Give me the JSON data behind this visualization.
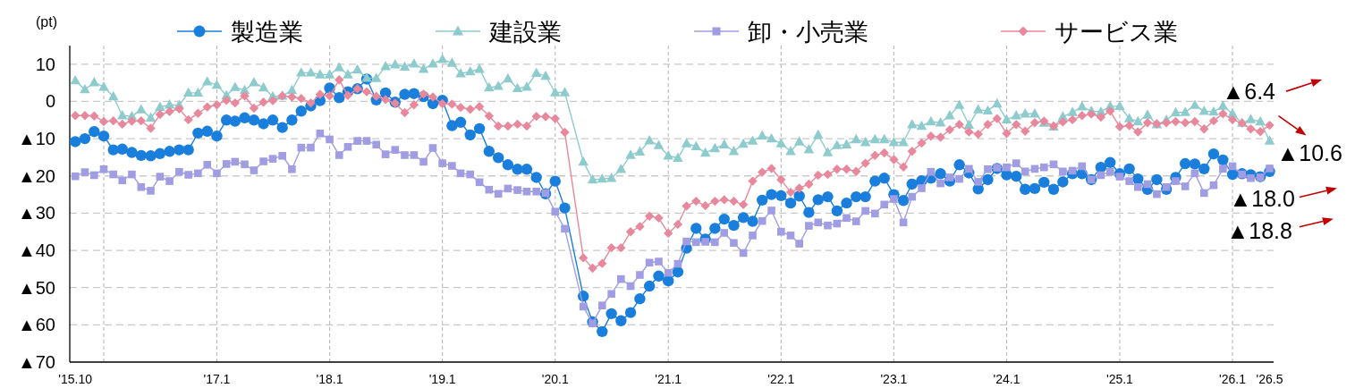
{
  "chart_data": {
    "type": "line",
    "ylabel": "(pt)",
    "legend": "top",
    "grid": true,
    "xlim": [
      "2015-09-13",
      "2026-05-14"
    ],
    "xticks": [
      {
        "value": "2015-10",
        "label": "'15.10"
      },
      {
        "value": "2016-01",
        "label": null
      },
      {
        "value": "2017-01",
        "label": "'17.1"
      },
      {
        "value": "2018-01",
        "label": "'18.1"
      },
      {
        "value": "2019-01",
        "label": "'19.1"
      },
      {
        "value": "2020-01",
        "label": "'20.1"
      },
      {
        "value": "2021-01",
        "label": "'21.1"
      },
      {
        "value": "2022-01",
        "label": "'22.1"
      },
      {
        "value": "2023-01",
        "label": "'23.1"
      },
      {
        "value": "2024-01",
        "label": "'24.1"
      },
      {
        "value": "2025-01",
        "label": "'25.1"
      },
      {
        "value": "2026-01",
        "label": "'26.1"
      },
      {
        "value": "2026-05",
        "label": "'26.5"
      }
    ],
    "ylim": [
      -70,
      15
    ],
    "yticks": [
      {
        "value": -70,
        "label": "▲70"
      },
      {
        "value": -60,
        "label": "▲60"
      },
      {
        "value": -50,
        "label": "▲50"
      },
      {
        "value": -40,
        "label": "▲40"
      },
      {
        "value": -30,
        "label": "▲30"
      },
      {
        "value": -20,
        "label": "▲20"
      },
      {
        "value": -10,
        "label": "▲10"
      },
      0,
      10
    ],
    "x": [
      "2015-10",
      "2015-11",
      "2015-12",
      "2016-01",
      "2016-02",
      "2016-03",
      "2016-04",
      "2016-05",
      "2016-06",
      "2016-07",
      "2016-08",
      "2016-09",
      "2016-10",
      "2016-11",
      "2016-12",
      "2017-01",
      "2017-02",
      "2017-03",
      "2017-04",
      "2017-05",
      "2017-06",
      "2017-07",
      "2017-08",
      "2017-09",
      "2017-10",
      "2017-11",
      "2017-12",
      "2018-01",
      "2018-02",
      "2018-03",
      "2018-04",
      "2018-05",
      "2018-06",
      "2018-07",
      "2018-08",
      "2018-09",
      "2018-10",
      "2018-11",
      "2018-12",
      "2019-01",
      "2019-02",
      "2019-03",
      "2019-04",
      "2019-05",
      "2019-06",
      "2019-07",
      "2019-08",
      "2019-09",
      "2019-10",
      "2019-11",
      "2019-12",
      "2020-01",
      "2020-02",
      "2020-04",
      "2020-05",
      "2020-06",
      "2020-07",
      "2020-08",
      "2020-09",
      "2020-10",
      "2020-11",
      "2020-12",
      "2021-01",
      "2021-02",
      "2021-03",
      "2021-04",
      "2021-05",
      "2021-06",
      "2021-07",
      "2021-08",
      "2021-09",
      "2021-10",
      "2021-11",
      "2021-12",
      "2022-01",
      "2022-02",
      "2022-03",
      "2022-04",
      "2022-05",
      "2022-06",
      "2022-07",
      "2022-08",
      "2022-09",
      "2022-10",
      "2022-11",
      "2022-12",
      "2023-01",
      "2023-02",
      "2023-03",
      "2023-04",
      "2023-05",
      "2023-06",
      "2023-07",
      "2023-08",
      "2023-09",
      "2023-10",
      "2023-11",
      "2023-12",
      "2024-01",
      "2024-02",
      "2024-03",
      "2024-04",
      "2024-05",
      "2024-06",
      "2024-07",
      "2024-08",
      "2024-09",
      "2024-10",
      "2024-11",
      "2024-12",
      "2025-01",
      "2025-02",
      "2025-03",
      "2025-04",
      "2025-05",
      "2025-06",
      "2025-07",
      "2025-08",
      "2025-09",
      "2025-10",
      "2025-11",
      "2025-12",
      "2026-01",
      "2026-02",
      "2026-03",
      "2026-04",
      "2026-05"
    ],
    "series": [
      {
        "name": "製造業",
        "color": "#1a7fdc",
        "marker": "circle",
        "values": [
          -10.8,
          -10.0,
          -8.1,
          -9.3,
          -13.0,
          -12.8,
          -13.7,
          -14.5,
          -14.6,
          -14.0,
          -13.4,
          -13.0,
          -13.0,
          -8.5,
          -8.0,
          -9.3,
          -5.0,
          -5.3,
          -4.4,
          -5.0,
          -6.0,
          -5.0,
          -7.0,
          -5.0,
          -2.6,
          -1.2,
          0.2,
          3.6,
          1.0,
          2.6,
          3.4,
          6.0,
          0.4,
          2.3,
          -0.2,
          1.9,
          2.1,
          1.3,
          -0.6,
          0.3,
          -6.5,
          -5.6,
          -9.0,
          -7.3,
          -13.4,
          -15.1,
          -17.0,
          -18.2,
          -18.2,
          -20.4,
          -24.8,
          -21.4,
          -28.6,
          -52.3,
          -59.2,
          -61.8,
          -57.0,
          -58.9,
          -56.7,
          -53.0,
          -49.6,
          -46.9,
          -48.2,
          -45.8,
          -39.4,
          -34.1,
          -37.0,
          -34.1,
          -31.6,
          -33.3,
          -31.2,
          -32.2,
          -26.5,
          -25.0,
          -25.3,
          -27.3,
          -25.4,
          -29.8,
          -26.4,
          -25.6,
          -29.4,
          -27.3,
          -25.6,
          -25.6,
          -21.4,
          -20.6,
          -25.0,
          -26.6,
          -22.2,
          -21.3,
          -20.6,
          -19.4,
          -21.4,
          -17.0,
          -19.2,
          -23.5,
          -21.0,
          -18.0,
          -19.7,
          -20.1,
          -23.6,
          -23.4,
          -21.7,
          -23.6,
          -21.6,
          -19.4,
          -19.4,
          -21.0,
          -17.7,
          -16.4,
          -19.4,
          -18.1,
          -20.8,
          -23.6,
          -21.0,
          -23.6,
          -20.4,
          -16.7,
          -16.8,
          -18.1,
          -14.1,
          -15.7,
          -19.6,
          -19.4,
          -19.7,
          -20.2,
          -18.8
        ]
      },
      {
        "name": "建設業",
        "color": "#8ecbcc",
        "marker": "triangle",
        "values": [
          5.6,
          3.2,
          5.1,
          3.9,
          1.3,
          -3.8,
          -4.0,
          -2.2,
          -4.4,
          -1.5,
          -0.9,
          -1.0,
          2.3,
          2.3,
          5.3,
          4.4,
          1.6,
          3.8,
          3.0,
          5.1,
          3.7,
          1.3,
          1.5,
          3.0,
          7.7,
          7.7,
          7.2,
          7.2,
          9.1,
          7.2,
          8.5,
          6.3,
          6.2,
          9.4,
          9.9,
          9.3,
          10.1,
          8.7,
          10.1,
          11.3,
          10.3,
          7.5,
          8.0,
          8.7,
          3.7,
          4.1,
          6.1,
          3.5,
          3.9,
          7.6,
          6.8,
          2.4,
          2.4,
          -16.2,
          -21.0,
          -20.8,
          -20.6,
          -18.2,
          -14.4,
          -13.5,
          -10.5,
          -11.8,
          -14.6,
          -15.2,
          -11.3,
          -12.1,
          -13.8,
          -12.6,
          -11.6,
          -13.4,
          -11.4,
          -10.6,
          -9.2,
          -10.0,
          -11.3,
          -13.4,
          -10.8,
          -12.9,
          -9.0,
          -13.7,
          -11.8,
          -11.6,
          -10.2,
          -11.0,
          -10.2,
          -10.2,
          -11.0,
          -11.0,
          -6.2,
          -6.6,
          -5.4,
          -5.7,
          -3.8,
          -1.0,
          -6.3,
          -2.2,
          -2.5,
          -0.6,
          -4.9,
          -3.8,
          -3.3,
          -3.3,
          -5.8,
          -6.8,
          -4.1,
          -2.9,
          -1.4,
          -2.6,
          -2.8,
          -1.3,
          -1.3,
          -4.6,
          -5.4,
          -3.6,
          -6.2,
          -5.0,
          -3.0,
          -2.9,
          -1.0,
          -2.6,
          -2.8,
          -1.2,
          -3.3,
          -5.8,
          -4.8,
          -5.4,
          -10.6
        ]
      },
      {
        "name": "卸・小売業",
        "color": "#a09de2",
        "marker": "square",
        "values": [
          -20.1,
          -19.0,
          -19.8,
          -18.2,
          -19.6,
          -21.2,
          -19.6,
          -23.0,
          -24.0,
          -20.2,
          -21.4,
          -18.9,
          -19.7,
          -19.3,
          -17.0,
          -19.3,
          -16.8,
          -16.2,
          -16.9,
          -18.5,
          -16.1,
          -15.4,
          -14.6,
          -18.2,
          -12.4,
          -12.4,
          -8.6,
          -10.2,
          -14.4,
          -12.2,
          -10.6,
          -10.6,
          -11.6,
          -14.2,
          -13.0,
          -14.4,
          -14.4,
          -16.2,
          -12.5,
          -16.6,
          -17.3,
          -19.3,
          -19.6,
          -21.7,
          -23.7,
          -24.8,
          -23.4,
          -23.8,
          -24.2,
          -24.2,
          -24.6,
          -29.6,
          -34.2,
          -55.1,
          -59.6,
          -54.8,
          -51.7,
          -47.7,
          -49.6,
          -46.6,
          -43.3,
          -43.0,
          -46.0,
          -43.6,
          -37.6,
          -37.8,
          -37.7,
          -37.8,
          -35.3,
          -38.0,
          -40.7,
          -36.0,
          -32.1,
          -29.3,
          -35.0,
          -36.0,
          -38.2,
          -33.4,
          -32.5,
          -33.3,
          -32.8,
          -31.3,
          -32.2,
          -29.4,
          -30.1,
          -27.7,
          -26.2,
          -32.5,
          -25.6,
          -23.3,
          -18.9,
          -22.0,
          -20.4,
          -20.8,
          -18.1,
          -21.6,
          -18.2,
          -17.8,
          -17.7,
          -16.6,
          -18.8,
          -18.1,
          -17.7,
          -16.9,
          -18.8,
          -18.6,
          -17.4,
          -21.0,
          -19.8,
          -18.9,
          -20.2,
          -21.4,
          -23.0,
          -22.2,
          -24.9,
          -23.0,
          -21.4,
          -22.8,
          -19.3,
          -24.6,
          -22.5,
          -18.1,
          -17.4,
          -19.6,
          -20.6,
          -20.4,
          -18.0
        ]
      },
      {
        "name": "サービス業",
        "color": "#e8889c",
        "marker": "diamond",
        "values": [
          -3.8,
          -3.8,
          -3.9,
          -5.4,
          -5.2,
          -6.1,
          -5.3,
          -5.2,
          -7.2,
          -3.5,
          -2.7,
          -2.0,
          -4.9,
          -3.2,
          -1.5,
          -0.9,
          0.3,
          -0.4,
          1.5,
          -1.8,
          -0.2,
          0.2,
          1.5,
          1.2,
          0.8,
          -0.4,
          1.9,
          1.5,
          5.8,
          1.6,
          3.4,
          2.6,
          1.4,
          0.5,
          -0.5,
          -3.0,
          -0.9,
          2.0,
          1.2,
          -0.6,
          -0.7,
          -1.6,
          -2.1,
          -1.4,
          -3.9,
          -6.6,
          -6.6,
          -6.1,
          -6.6,
          -4.0,
          -4.1,
          -4.6,
          -8.3,
          -42.0,
          -44.8,
          -43.5,
          -39.3,
          -39.3,
          -35.0,
          -33.6,
          -30.8,
          -31.3,
          -35.4,
          -33.0,
          -28.1,
          -26.8,
          -28.0,
          -26.8,
          -26.4,
          -26.8,
          -27.7,
          -21.4,
          -19.0,
          -18.0,
          -21.0,
          -24.4,
          -23.3,
          -22.2,
          -19.8,
          -19.6,
          -18.2,
          -18.2,
          -18.8,
          -16.6,
          -14.5,
          -13.8,
          -15.6,
          -17.6,
          -13.4,
          -11.2,
          -9.3,
          -9.6,
          -7.6,
          -6.2,
          -8.2,
          -8.8,
          -6.2,
          -4.6,
          -8.6,
          -6.2,
          -8.0,
          -5.7,
          -5.3,
          -6.6,
          -5.5,
          -4.9,
          -3.8,
          -3.4,
          -4.2,
          -2.6,
          -6.8,
          -6.5,
          -8.2,
          -5.7,
          -6.0,
          -5.7,
          -5.4,
          -5.7,
          -5.4,
          -7.4,
          -5.2,
          -3.3,
          -4.9,
          -5.8,
          -7.4,
          -8.1,
          -6.4
        ]
      }
    ],
    "annotations": [
      {
        "text": "▲6.4",
        "x": "2026-05",
        "y": -6.4
      },
      {
        "text": "▲10.6",
        "x": "2026-05",
        "y": -10.6
      },
      {
        "text": "▲18.0",
        "x": "2026-05",
        "y": -18.0
      },
      {
        "text": "▲18.8",
        "x": "2026-05",
        "y": -18.8
      }
    ]
  }
}
